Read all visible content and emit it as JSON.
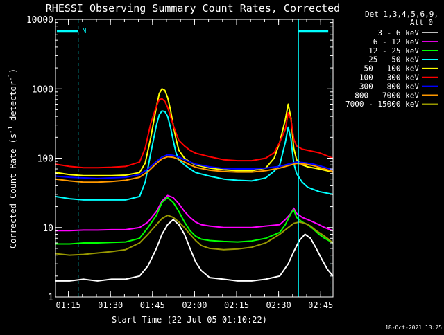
{
  "chart_data": {
    "type": "line",
    "title": "RHESSI Observing Summary Count Rates, Corrected",
    "xlabel": "Start Time (22-Jul-05 01:10:22)",
    "ylabel_parts": [
      "Corrected Count Rate (s",
      "-1",
      " detector",
      "-1",
      ")"
    ],
    "x_unit": "minutes since 01:10:22",
    "xlim": [
      0,
      99
    ],
    "ylim": [
      1,
      10000
    ],
    "yscale": "log",
    "x_ticks": [
      {
        "label": "01:15",
        "value": 4.6
      },
      {
        "label": "01:30",
        "value": 19.6
      },
      {
        "label": "01:45",
        "value": 34.6
      },
      {
        "label": "02:00",
        "value": 49.6
      },
      {
        "label": "02:15",
        "value": 64.6
      },
      {
        "label": "02:30",
        "value": 79.6
      },
      {
        "label": "02:45",
        "value": 94.6
      }
    ],
    "y_ticks": [
      {
        "label": "1",
        "value": 1
      },
      {
        "label": "10",
        "value": 10
      },
      {
        "label": "100",
        "value": 100
      },
      {
        "label": "1000",
        "value": 1000
      },
      {
        "label": "10000",
        "value": 10000
      }
    ],
    "legend_header": [
      "Det 1,3,4,5,6,9,",
      "Att 0"
    ],
    "legend_position": "top-right, outside plot",
    "timestamp": "18-Oct-2021 13:25",
    "annotations": [
      {
        "text": "N",
        "x": 9.0,
        "y": 7000
      }
    ],
    "markers": {
      "vertical_lines": [
        {
          "x": 0.0,
          "style": "solid"
        },
        {
          "x": 8.1,
          "style": "dashed"
        },
        {
          "x": 86.7,
          "style": "solid"
        },
        {
          "x": 97.9,
          "style": "dashed"
        }
      ],
      "bars": [
        {
          "x0": 0.5,
          "x1": 8.1,
          "y": 6800
        },
        {
          "x0": 86.7,
          "x1": 97.3,
          "y": 6800
        }
      ]
    },
    "series": [
      {
        "name": "3 - 6 keV",
        "color": "#ffffff",
        "x": [
          0,
          5,
          10,
          15,
          20,
          25,
          30,
          33,
          36,
          38,
          40,
          42,
          44,
          46,
          48,
          50,
          52,
          55,
          60,
          65,
          70,
          75,
          80,
          83,
          85,
          87,
          89,
          91,
          93,
          95,
          97,
          99
        ],
        "y": [
          1.7,
          1.7,
          1.8,
          1.7,
          1.8,
          1.8,
          2.0,
          2.8,
          5,
          8,
          11,
          13,
          11,
          8,
          5,
          3.2,
          2.4,
          1.9,
          1.8,
          1.7,
          1.7,
          1.8,
          2.0,
          3.0,
          4.5,
          6.5,
          8,
          7,
          5,
          3.5,
          2.5,
          2.0
        ]
      },
      {
        "name": "6 - 12 keV",
        "color": "#ff00ff",
        "x": [
          0,
          5,
          10,
          15,
          20,
          25,
          30,
          33,
          36,
          38,
          40,
          42,
          44,
          46,
          48,
          50,
          52,
          55,
          60,
          65,
          70,
          75,
          80,
          82,
          84,
          85,
          86,
          88,
          90,
          92,
          94,
          96,
          99
        ],
        "y": [
          9,
          9,
          9.2,
          9.2,
          9.3,
          9.3,
          10,
          12,
          17,
          24,
          29,
          27,
          22,
          17,
          14,
          12,
          11,
          10.5,
          10,
          10,
          10,
          10.5,
          11,
          13,
          16,
          19,
          16,
          14,
          13,
          12,
          11,
          10,
          9
        ]
      },
      {
        "name": "12 - 25 keV",
        "color": "#00ff00",
        "x": [
          0,
          5,
          10,
          15,
          20,
          25,
          30,
          33,
          36,
          38,
          40,
          42,
          44,
          46,
          48,
          50,
          52,
          55,
          60,
          65,
          70,
          75,
          80,
          82,
          84,
          85,
          86,
          88,
          90,
          92,
          94,
          96,
          99
        ],
        "y": [
          5.8,
          5.8,
          6,
          6,
          6.1,
          6.2,
          7,
          10,
          15,
          23,
          27,
          23,
          17,
          12,
          9,
          7.5,
          6.8,
          6.5,
          6.3,
          6.2,
          6.4,
          7,
          8.5,
          11,
          16,
          18,
          14,
          12,
          11,
          9.5,
          8,
          7,
          6
        ]
      },
      {
        "name": "25 - 50 keV",
        "color": "#00ffff",
        "x": [
          0,
          5,
          10,
          15,
          20,
          25,
          30,
          32,
          34,
          36,
          37,
          38,
          39,
          40,
          41,
          42,
          43,
          44,
          46,
          48,
          50,
          55,
          60,
          65,
          70,
          75,
          78,
          80,
          82,
          83,
          84,
          85,
          86,
          88,
          90,
          94,
          99
        ],
        "y": [
          28,
          26,
          25,
          25,
          25,
          25,
          28,
          45,
          120,
          300,
          420,
          480,
          470,
          400,
          280,
          180,
          120,
          95,
          80,
          70,
          62,
          55,
          50,
          48,
          47,
          52,
          65,
          80,
          170,
          280,
          190,
          85,
          60,
          45,
          38,
          33,
          30
        ]
      },
      {
        "name": "50 - 100 keV",
        "color": "#ffff00",
        "x": [
          0,
          5,
          10,
          15,
          20,
          25,
          30,
          32,
          34,
          36,
          37,
          38,
          39,
          40,
          41,
          42,
          43,
          44,
          46,
          48,
          50,
          55,
          60,
          65,
          70,
          75,
          78,
          80,
          82,
          83,
          84,
          85,
          86,
          88,
          90,
          94,
          99
        ],
        "y": [
          62,
          58,
          56,
          56,
          56,
          57,
          62,
          85,
          200,
          550,
          850,
          1000,
          950,
          750,
          500,
          300,
          190,
          130,
          100,
          88,
          80,
          72,
          68,
          66,
          66,
          72,
          100,
          170,
          360,
          600,
          380,
          140,
          95,
          80,
          75,
          70,
          63
        ]
      },
      {
        "name": "100 - 300 keV",
        "color": "#ff0000",
        "x": [
          0,
          5,
          10,
          15,
          20,
          25,
          30,
          32,
          34,
          36,
          37,
          38,
          39,
          40,
          41,
          42,
          43,
          44,
          46,
          48,
          50,
          55,
          60,
          65,
          70,
          75,
          78,
          80,
          82,
          83,
          84,
          85,
          86,
          88,
          90,
          94,
          99
        ],
        "y": [
          82,
          76,
          73,
          73,
          74,
          76,
          88,
          140,
          320,
          560,
          700,
          720,
          660,
          540,
          400,
          300,
          230,
          180,
          150,
          130,
          118,
          105,
          95,
          92,
          92,
          100,
          120,
          170,
          260,
          450,
          360,
          190,
          150,
          135,
          130,
          120,
          100
        ]
      },
      {
        "name": "300 - 800 keV",
        "color": "#0000ff",
        "x": [
          0,
          5,
          10,
          15,
          20,
          25,
          30,
          33,
          36,
          38,
          40,
          42,
          44,
          46,
          48,
          50,
          55,
          60,
          65,
          70,
          75,
          80,
          83,
          86,
          89,
          92,
          95,
          99
        ],
        "y": [
          55,
          53,
          52,
          51,
          52,
          53,
          58,
          70,
          90,
          104,
          112,
          110,
          104,
          95,
          88,
          82,
          75,
          71,
          70,
          70,
          72,
          76,
          82,
          88,
          86,
          82,
          76,
          68
        ]
      },
      {
        "name": "800 - 7000 keV",
        "color": "#ff9900",
        "x": [
          0,
          5,
          10,
          15,
          20,
          25,
          30,
          33,
          36,
          38,
          40,
          42,
          44,
          46,
          48,
          50,
          55,
          60,
          65,
          70,
          75,
          80,
          83,
          86,
          89,
          92,
          95,
          99
        ],
        "y": [
          50,
          47,
          45,
          45,
          46,
          48,
          53,
          64,
          84,
          98,
          105,
          103,
          96,
          88,
          80,
          74,
          67,
          64,
          63,
          63,
          66,
          72,
          78,
          84,
          82,
          78,
          72,
          64
        ]
      },
      {
        "name": "7000 - 15000 keV",
        "color": "#999900",
        "x": [
          0,
          5,
          10,
          15,
          20,
          25,
          30,
          33,
          36,
          38,
          40,
          42,
          44,
          46,
          48,
          50,
          52,
          55,
          60,
          65,
          70,
          75,
          80,
          83,
          85,
          87,
          89,
          91,
          93,
          95,
          97,
          99
        ],
        "y": [
          4.2,
          4.0,
          4.1,
          4.3,
          4.5,
          4.8,
          6,
          8,
          11,
          13.5,
          15,
          14,
          12,
          10,
          8,
          6.5,
          5.5,
          5,
          4.8,
          4.9,
          5.2,
          6,
          8,
          10,
          11.5,
          12,
          11.5,
          10.5,
          9,
          8,
          7,
          6
        ]
      }
    ]
  }
}
